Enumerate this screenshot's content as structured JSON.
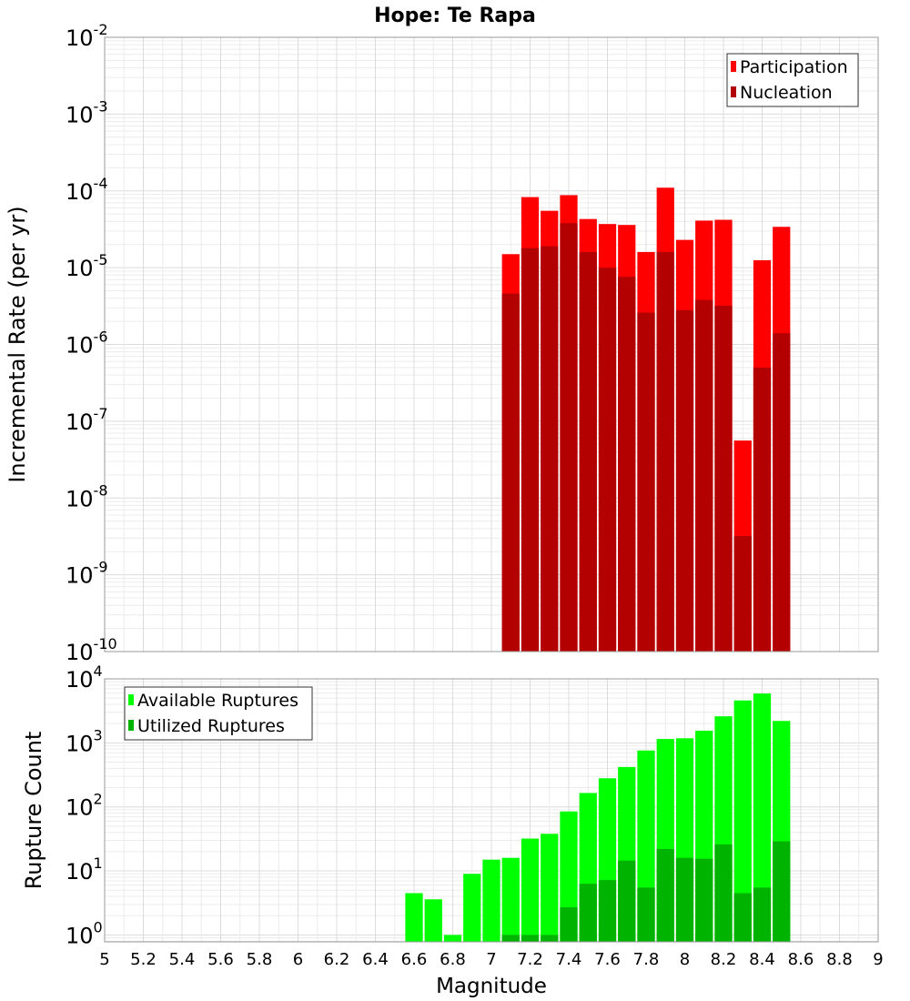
{
  "chart_data": [
    {
      "type": "bar",
      "title": "Hope: Te Rapa",
      "xlabel": "",
      "ylabel": "Incremental Rate (per yr)",
      "xlim": [
        5,
        9
      ],
      "ylim": [
        1e-10,
        0.01
      ],
      "yscale": "log",
      "ytick_exponents": [
        -10,
        -9,
        -8,
        -7,
        -6,
        -5,
        -4,
        -3,
        -2
      ],
      "grid": true,
      "legend_position": "top-right",
      "bin_width": 0.1,
      "x": [
        7.1,
        7.2,
        7.3,
        7.4,
        7.5,
        7.6,
        7.7,
        7.8,
        7.9,
        8.0,
        8.1,
        8.2,
        8.3,
        8.4,
        8.5
      ],
      "series": [
        {
          "name": "Participation",
          "color": "#ff0000",
          "values": [
            1.5e-05,
            8.3e-05,
            5.5e-05,
            8.8e-05,
            4.3e-05,
            3.7e-05,
            3.6e-05,
            1.6e-05,
            0.00011,
            2.3e-05,
            4.1e-05,
            4.2e-05,
            5.6e-08,
            1.25e-05,
            3.4e-05
          ]
        },
        {
          "name": "Nucleation",
          "color": "#b30000",
          "values": [
            4.6e-06,
            1.8e-05,
            1.9e-05,
            3.8e-05,
            1.6e-05,
            1e-05,
            7.6e-06,
            2.6e-06,
            1.6e-05,
            2.8e-06,
            3.8e-06,
            3.2e-06,
            3.2e-09,
            5e-07,
            1.4e-06
          ]
        }
      ]
    },
    {
      "type": "bar",
      "title": "",
      "xlabel": "Magnitude",
      "ylabel": "Rupture Count",
      "xlim": [
        5,
        9
      ],
      "ylim": [
        0.78,
        10000
      ],
      "yscale": "log",
      "ytick_exponents": [
        0,
        1,
        2,
        3,
        4
      ],
      "grid": true,
      "legend_position": "top-left",
      "bin_width": 0.1,
      "x_ticks": [
        "5",
        "5.2",
        "5.4",
        "5.6",
        "5.8",
        "6",
        "6.2",
        "6.4",
        "6.6",
        "6.8",
        "7",
        "7.2",
        "7.4",
        "7.6",
        "7.8",
        "8",
        "8.2",
        "8.4",
        "8.6",
        "8.8",
        "9"
      ],
      "x": [
        6.6,
        6.7,
        6.8,
        6.9,
        7.0,
        7.1,
        7.2,
        7.3,
        7.4,
        7.5,
        7.6,
        7.7,
        7.8,
        7.9,
        8.0,
        8.1,
        8.2,
        8.3,
        8.4,
        8.5
      ],
      "series": [
        {
          "name": "Available Ruptures",
          "color": "#00ff00",
          "values": [
            4.5,
            3.6,
            1,
            9,
            15,
            16,
            32,
            38,
            85,
            165,
            280,
            420,
            760,
            1150,
            1180,
            1550,
            2600,
            4600,
            5900,
            2200
          ]
        },
        {
          "name": "Utilized Ruptures",
          "color": "#00b300",
          "values": [
            0,
            0,
            0,
            0,
            0,
            1,
            1,
            1,
            2.7,
            6.3,
            7.2,
            14.5,
            5.5,
            22,
            16,
            15.5,
            26,
            4.5,
            5.5,
            29
          ]
        }
      ]
    }
  ]
}
